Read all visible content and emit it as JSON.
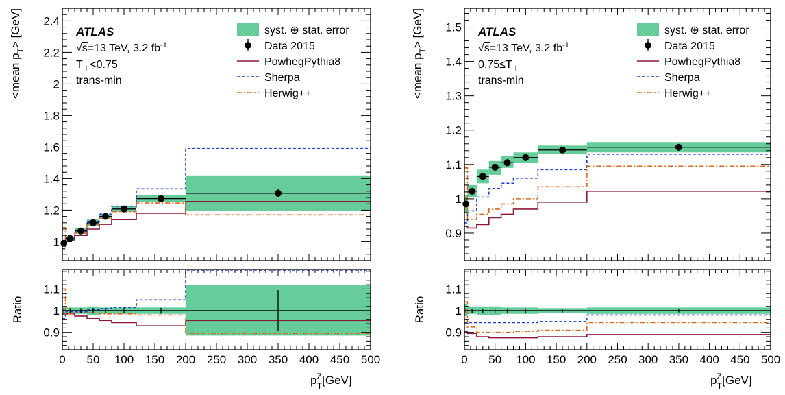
{
  "chart_data": [
    {
      "type": "line",
      "atlas_label": "ATLAS",
      "info": {
        "sqrt_s": "s",
        "energy": "=13 TeV, 3.2 fb",
        "lumi_exp": "-1",
        "cut_main": "T",
        "cut_sub": "⊥",
        "cut_rest": "<0.75",
        "region": "trans-min"
      },
      "xlabel": {
        "base": "p",
        "sub": "T",
        "sup": "Z",
        "unit": "[GeV]"
      },
      "ylabel": {
        "pre": "<mean p",
        "sub": "T",
        "post": "> [GeV]"
      },
      "ratio_ylabel": "Ratio",
      "xlim": [
        0,
        500
      ],
      "ylim": [
        0.88,
        2.48
      ],
      "ratio_ylim": [
        0.82,
        1.19
      ],
      "x_ticks": [
        "0",
        "50",
        "100",
        "150",
        "200",
        "250",
        "300",
        "350",
        "400",
        "450",
        "500"
      ],
      "y_ticks": [
        "1",
        "1.2",
        "1.4",
        "1.6",
        "1.8",
        "2",
        "2.2",
        "2.4"
      ],
      "ratio_ticks": [
        "0.9",
        "1",
        "1.1"
      ],
      "bin_edges": [
        0,
        5,
        20,
        40,
        60,
        80,
        120,
        200,
        500
      ],
      "bin_centers": [
        2.5,
        12.5,
        30,
        50,
        70,
        100,
        160,
        350
      ],
      "series": [
        {
          "name": "syst. ⊕ stat. error",
          "kind": "band",
          "color": "#66cc99",
          "lo": [
            0.975,
            1.005,
            1.05,
            1.1,
            1.145,
            1.19,
            1.25,
            1.195
          ],
          "hi": [
            1.005,
            1.035,
            1.085,
            1.14,
            1.175,
            1.225,
            1.295,
            1.42
          ]
        },
        {
          "name": "Data 2015",
          "kind": "points",
          "color": "#000000",
          "values": [
            0.99,
            1.02,
            1.068,
            1.12,
            1.16,
            1.207,
            1.273,
            1.307
          ],
          "errors": [
            0.01,
            0.012,
            0.012,
            0.014,
            0.014,
            0.015,
            0.018,
            0.025
          ]
        },
        {
          "name": "PowhegPythia8",
          "kind": "step",
          "color": "#8b1a3a",
          "values": [
            0.975,
            1.005,
            1.04,
            1.08,
            1.11,
            1.14,
            1.18,
            1.255
          ]
        },
        {
          "name": "Sherpa",
          "kind": "step",
          "color": "#1a3fd6",
          "values": [
            0.955,
            1.015,
            1.06,
            1.13,
            1.175,
            1.225,
            1.335,
            1.59
          ]
        },
        {
          "name": "Herwig++",
          "kind": "step",
          "color": "#d96a1e",
          "values": [
            1.09,
            1.005,
            1.055,
            1.11,
            1.145,
            1.19,
            1.245,
            1.17
          ]
        }
      ],
      "ratio_series": [
        {
          "name": "syst. ⊕ stat. error",
          "kind": "band",
          "lo": [
            0.985,
            0.985,
            0.985,
            0.98,
            0.985,
            0.985,
            0.985,
            0.885
          ],
          "hi": [
            1.015,
            1.015,
            1.015,
            1.02,
            1.015,
            1.015,
            1.015,
            1.12
          ]
        },
        {
          "name": "Data 2015",
          "kind": "points",
          "values": [
            1,
            1,
            1,
            1,
            1,
            1,
            1,
            1
          ],
          "errors": [
            0.012,
            0.012,
            0.012,
            0.013,
            0.012,
            0.012,
            0.014,
            0.095
          ]
        },
        {
          "name": "PowhegPythia8",
          "kind": "step",
          "values": [
            0.985,
            0.985,
            0.975,
            0.965,
            0.955,
            0.945,
            0.93,
            0.955
          ]
        },
        {
          "name": "Sherpa",
          "kind": "step",
          "values": [
            0.965,
            0.995,
            0.995,
            1.005,
            1.01,
            1.015,
            1.05,
            1.215
          ]
        },
        {
          "name": "Herwig++",
          "kind": "step",
          "values": [
            1.1,
            0.985,
            0.99,
            0.99,
            0.985,
            0.985,
            0.98,
            0.895
          ]
        }
      ]
    },
    {
      "type": "line",
      "atlas_label": "ATLAS",
      "info": {
        "sqrt_s": "s",
        "energy": "=13 TeV, 3.2 fb",
        "lumi_exp": "-1",
        "cut_main": "0.75≤T",
        "cut_sub": "⊥",
        "cut_rest": "",
        "region": "trans-min"
      },
      "xlabel": {
        "base": "p",
        "sub": "T",
        "sup": "Z",
        "unit": "[GeV]"
      },
      "ylabel": {
        "pre": "<mean p",
        "sub": "T",
        "post": "> [GeV]"
      },
      "ratio_ylabel": "Ratio",
      "xlim": [
        0,
        500
      ],
      "ylim": [
        0.82,
        1.555
      ],
      "ratio_ylim": [
        0.82,
        1.19
      ],
      "x_ticks": [
        "0",
        "50",
        "100",
        "150",
        "200",
        "250",
        "300",
        "350",
        "400",
        "450",
        "500"
      ],
      "y_ticks": [
        "0.9",
        "1",
        "1.1",
        "1.2",
        "1.3",
        "1.4",
        "1.5"
      ],
      "ratio_ticks": [
        "0.9",
        "1",
        "1.1"
      ],
      "bin_edges": [
        0,
        5,
        20,
        40,
        60,
        80,
        120,
        200,
        500
      ],
      "bin_centers": [
        2.5,
        12.5,
        30,
        50,
        70,
        100,
        160,
        350
      ],
      "series": [
        {
          "name": "syst. ⊕ stat. error",
          "kind": "band",
          "color": "#66cc99",
          "lo": [
            0.96,
            1.005,
            1.045,
            1.07,
            1.09,
            1.105,
            1.13,
            1.135
          ],
          "hi": [
            1.01,
            1.04,
            1.085,
            1.11,
            1.125,
            1.135,
            1.155,
            1.165
          ]
        },
        {
          "name": "Data 2015",
          "kind": "points",
          "color": "#000000",
          "values": [
            0.985,
            1.022,
            1.065,
            1.092,
            1.105,
            1.12,
            1.142,
            1.15
          ],
          "errors": [
            0.01,
            0.01,
            0.01,
            0.01,
            0.01,
            0.01,
            0.008,
            0.008
          ]
        },
        {
          "name": "PowhegPythia8",
          "kind": "step",
          "color": "#8b1a3a",
          "values": [
            0.92,
            0.915,
            0.925,
            0.945,
            0.955,
            0.97,
            0.99,
            1.022
          ]
        },
        {
          "name": "Sherpa",
          "kind": "step",
          "color": "#1a3fd6",
          "values": [
            0.93,
            0.965,
            1.005,
            1.03,
            1.045,
            1.06,
            1.085,
            1.13
          ]
        },
        {
          "name": "Herwig++",
          "kind": "step",
          "color": "#d96a1e",
          "values": [
            1.09,
            0.94,
            0.955,
            0.97,
            0.985,
            1.0,
            1.035,
            1.095
          ]
        }
      ],
      "ratio_series": [
        {
          "name": "syst. ⊕ stat. error",
          "kind": "band",
          "lo": [
            0.975,
            0.985,
            0.98,
            0.98,
            0.985,
            0.985,
            0.99,
            0.985
          ],
          "hi": [
            1.03,
            1.02,
            1.02,
            1.02,
            1.015,
            1.015,
            1.012,
            1.015
          ]
        },
        {
          "name": "Data 2015",
          "kind": "points",
          "values": [
            1,
            1,
            1,
            1,
            1,
            1,
            1,
            1
          ],
          "errors": [
            0.012,
            0.01,
            0.01,
            0.01,
            0.01,
            0.01,
            0.008,
            0.008
          ]
        },
        {
          "name": "PowhegPythia8",
          "kind": "step",
          "values": [
            0.905,
            0.895,
            0.88,
            0.875,
            0.875,
            0.875,
            0.88,
            0.89
          ]
        },
        {
          "name": "Sherpa",
          "kind": "step",
          "values": [
            0.945,
            0.945,
            0.945,
            0.945,
            0.945,
            0.945,
            0.95,
            0.98
          ]
        },
        {
          "name": "Herwig++",
          "kind": "step",
          "values": [
            1.04,
            0.925,
            0.9,
            0.9,
            0.9,
            0.905,
            0.91,
            0.945
          ]
        }
      ]
    }
  ]
}
